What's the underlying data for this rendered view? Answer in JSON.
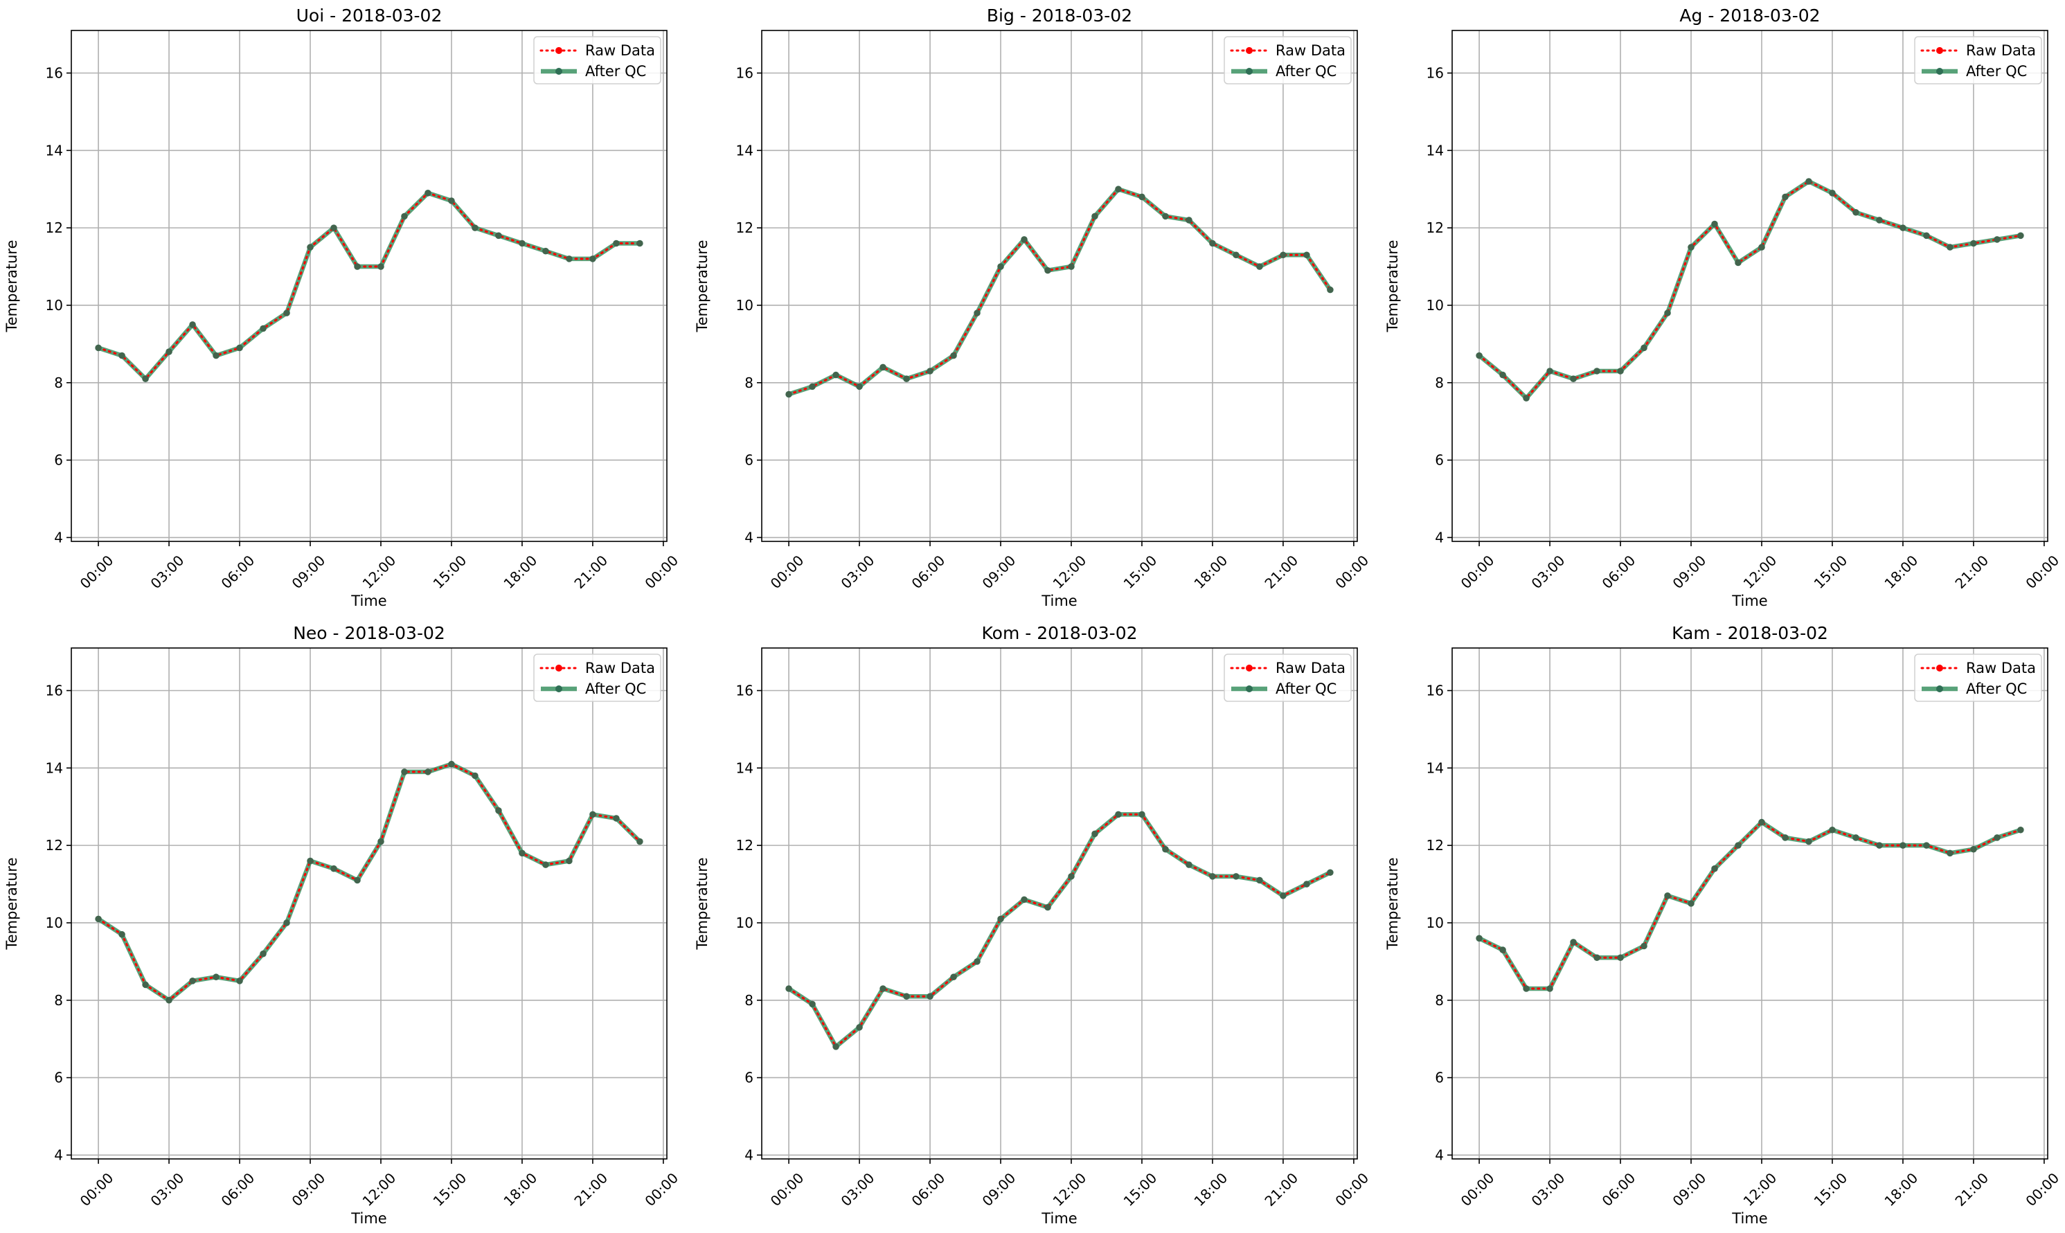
{
  "chart_data": [
    {
      "type": "line",
      "title": "Uoi - 2018-03-02",
      "xlabel": "Time",
      "ylabel": "Temperature",
      "ylim": [
        3.9,
        17.1
      ],
      "yticks": [
        4,
        6,
        8,
        10,
        12,
        14,
        16
      ],
      "xticks": [
        "00:00",
        "03:00",
        "06:00",
        "09:00",
        "12:00",
        "15:00",
        "18:00",
        "21:00",
        "00:00"
      ],
      "grid": true,
      "legend": "upper right",
      "x": [
        "00:00",
        "01:00",
        "02:00",
        "03:00",
        "04:00",
        "05:00",
        "06:00",
        "07:00",
        "08:00",
        "09:00",
        "10:00",
        "11:00",
        "12:00",
        "13:00",
        "14:00",
        "15:00",
        "16:00",
        "17:00",
        "18:00",
        "19:00",
        "20:00",
        "21:00",
        "22:00",
        "23:00"
      ],
      "series": [
        {
          "name": "Raw Data",
          "color": "#ff0000",
          "values": [
            8.9,
            8.7,
            8.1,
            8.8,
            9.5,
            8.7,
            8.9,
            9.4,
            9.8,
            11.5,
            12.0,
            11.0,
            11.0,
            12.3,
            12.9,
            12.7,
            12.0,
            11.8,
            11.6,
            11.4,
            11.2,
            11.2,
            11.6,
            11.6
          ]
        },
        {
          "name": "After QC",
          "color": "#2e8b57",
          "values": [
            8.9,
            8.7,
            8.1,
            8.8,
            9.5,
            8.7,
            8.9,
            9.4,
            9.8,
            11.5,
            12.0,
            11.0,
            11.0,
            12.3,
            12.9,
            12.7,
            12.0,
            11.8,
            11.6,
            11.4,
            11.2,
            11.2,
            11.6,
            11.6
          ]
        }
      ]
    },
    {
      "type": "line",
      "title": "Big - 2018-03-02",
      "xlabel": "Time",
      "ylabel": "Temperature",
      "ylim": [
        3.9,
        17.1
      ],
      "yticks": [
        4,
        6,
        8,
        10,
        12,
        14,
        16
      ],
      "xticks": [
        "00:00",
        "03:00",
        "06:00",
        "09:00",
        "12:00",
        "15:00",
        "18:00",
        "21:00",
        "00:00"
      ],
      "grid": true,
      "legend": "upper right",
      "x": [
        "00:00",
        "01:00",
        "02:00",
        "03:00",
        "04:00",
        "05:00",
        "06:00",
        "07:00",
        "08:00",
        "09:00",
        "10:00",
        "11:00",
        "12:00",
        "13:00",
        "14:00",
        "15:00",
        "16:00",
        "17:00",
        "18:00",
        "19:00",
        "20:00",
        "21:00",
        "22:00",
        "23:00"
      ],
      "series": [
        {
          "name": "Raw Data",
          "color": "#ff0000",
          "values": [
            7.7,
            7.9,
            8.2,
            7.9,
            8.4,
            8.1,
            8.3,
            8.7,
            9.8,
            11.0,
            11.7,
            10.9,
            11.0,
            12.3,
            13.0,
            12.8,
            12.3,
            12.2,
            11.6,
            11.3,
            11.0,
            11.3,
            11.3,
            10.4
          ]
        },
        {
          "name": "After QC",
          "color": "#2e8b57",
          "values": [
            7.7,
            7.9,
            8.2,
            7.9,
            8.4,
            8.1,
            8.3,
            8.7,
            9.8,
            11.0,
            11.7,
            10.9,
            11.0,
            12.3,
            13.0,
            12.8,
            12.3,
            12.2,
            11.6,
            11.3,
            11.0,
            11.3,
            11.3,
            10.4
          ]
        }
      ]
    },
    {
      "type": "line",
      "title": "Ag - 2018-03-02",
      "xlabel": "Time",
      "ylabel": "Temperature",
      "ylim": [
        3.9,
        17.1
      ],
      "yticks": [
        4,
        6,
        8,
        10,
        12,
        14,
        16
      ],
      "xticks": [
        "00:00",
        "03:00",
        "06:00",
        "09:00",
        "12:00",
        "15:00",
        "18:00",
        "21:00",
        "00:00"
      ],
      "grid": true,
      "legend": "upper right",
      "x": [
        "00:00",
        "01:00",
        "02:00",
        "03:00",
        "04:00",
        "05:00",
        "06:00",
        "07:00",
        "08:00",
        "09:00",
        "10:00",
        "11:00",
        "12:00",
        "13:00",
        "14:00",
        "15:00",
        "16:00",
        "17:00",
        "18:00",
        "19:00",
        "20:00",
        "21:00",
        "22:00",
        "23:00"
      ],
      "series": [
        {
          "name": "Raw Data",
          "color": "#ff0000",
          "values": [
            8.7,
            8.2,
            7.6,
            8.3,
            8.1,
            8.3,
            8.3,
            8.9,
            9.8,
            11.5,
            12.1,
            11.1,
            11.5,
            12.8,
            13.2,
            12.9,
            12.4,
            12.2,
            12.0,
            11.8,
            11.5,
            11.6,
            11.7,
            11.8
          ]
        },
        {
          "name": "After QC",
          "color": "#2e8b57",
          "values": [
            8.7,
            8.2,
            7.6,
            8.3,
            8.1,
            8.3,
            8.3,
            8.9,
            9.8,
            11.5,
            12.1,
            11.1,
            11.5,
            12.8,
            13.2,
            12.9,
            12.4,
            12.2,
            12.0,
            11.8,
            11.5,
            11.6,
            11.7,
            11.8
          ]
        }
      ]
    },
    {
      "type": "line",
      "title": "Neo - 2018-03-02",
      "xlabel": "Time",
      "ylabel": "Temperature",
      "ylim": [
        3.9,
        17.1
      ],
      "yticks": [
        4,
        6,
        8,
        10,
        12,
        14,
        16
      ],
      "xticks": [
        "00:00",
        "03:00",
        "06:00",
        "09:00",
        "12:00",
        "15:00",
        "18:00",
        "21:00",
        "00:00"
      ],
      "grid": true,
      "legend": "upper right",
      "x": [
        "00:00",
        "01:00",
        "02:00",
        "03:00",
        "04:00",
        "05:00",
        "06:00",
        "07:00",
        "08:00",
        "09:00",
        "10:00",
        "11:00",
        "12:00",
        "13:00",
        "14:00",
        "15:00",
        "16:00",
        "17:00",
        "18:00",
        "19:00",
        "20:00",
        "21:00",
        "22:00",
        "23:00"
      ],
      "series": [
        {
          "name": "Raw Data",
          "color": "#ff0000",
          "values": [
            10.1,
            9.7,
            8.4,
            8.0,
            8.5,
            8.6,
            8.5,
            9.2,
            10.0,
            11.6,
            11.4,
            11.1,
            12.1,
            13.9,
            13.9,
            14.1,
            13.8,
            12.9,
            11.8,
            11.5,
            11.6,
            12.8,
            12.7,
            12.1
          ]
        },
        {
          "name": "After QC",
          "color": "#2e8b57",
          "values": [
            10.1,
            9.7,
            8.4,
            8.0,
            8.5,
            8.6,
            8.5,
            9.2,
            10.0,
            11.6,
            11.4,
            11.1,
            12.1,
            13.9,
            13.9,
            14.1,
            13.8,
            12.9,
            11.8,
            11.5,
            11.6,
            12.8,
            12.7,
            12.1
          ]
        }
      ]
    },
    {
      "type": "line",
      "title": "Kom - 2018-03-02",
      "xlabel": "Time",
      "ylabel": "Temperature",
      "ylim": [
        3.9,
        17.1
      ],
      "yticks": [
        4,
        6,
        8,
        10,
        12,
        14,
        16
      ],
      "xticks": [
        "00:00",
        "03:00",
        "06:00",
        "09:00",
        "12:00",
        "15:00",
        "18:00",
        "21:00",
        "00:00"
      ],
      "grid": true,
      "legend": "upper right",
      "x": [
        "00:00",
        "01:00",
        "02:00",
        "03:00",
        "04:00",
        "05:00",
        "06:00",
        "07:00",
        "08:00",
        "09:00",
        "10:00",
        "11:00",
        "12:00",
        "13:00",
        "14:00",
        "15:00",
        "16:00",
        "17:00",
        "18:00",
        "19:00",
        "20:00",
        "21:00",
        "22:00",
        "23:00"
      ],
      "series": [
        {
          "name": "Raw Data",
          "color": "#ff0000",
          "values": [
            8.3,
            7.9,
            6.8,
            7.3,
            8.3,
            8.1,
            8.1,
            8.6,
            9.0,
            10.1,
            10.6,
            10.4,
            11.2,
            12.3,
            12.8,
            12.8,
            11.9,
            11.5,
            11.2,
            11.2,
            11.1,
            10.7,
            11.0,
            11.3
          ]
        },
        {
          "name": "After QC",
          "color": "#2e8b57",
          "values": [
            8.3,
            7.9,
            6.8,
            7.3,
            8.3,
            8.1,
            8.1,
            8.6,
            9.0,
            10.1,
            10.6,
            10.4,
            11.2,
            12.3,
            12.8,
            12.8,
            11.9,
            11.5,
            11.2,
            11.2,
            11.1,
            10.7,
            11.0,
            11.3
          ]
        }
      ]
    },
    {
      "type": "line",
      "title": "Kam - 2018-03-02",
      "xlabel": "Time",
      "ylabel": "Temperature",
      "ylim": [
        3.9,
        17.1
      ],
      "yticks": [
        4,
        6,
        8,
        10,
        12,
        14,
        16
      ],
      "xticks": [
        "00:00",
        "03:00",
        "06:00",
        "09:00",
        "12:00",
        "15:00",
        "18:00",
        "21:00",
        "00:00"
      ],
      "grid": true,
      "legend": "upper right",
      "x": [
        "00:00",
        "01:00",
        "02:00",
        "03:00",
        "04:00",
        "05:00",
        "06:00",
        "07:00",
        "08:00",
        "09:00",
        "10:00",
        "11:00",
        "12:00",
        "13:00",
        "14:00",
        "15:00",
        "16:00",
        "17:00",
        "18:00",
        "19:00",
        "20:00",
        "21:00",
        "22:00",
        "23:00"
      ],
      "series": [
        {
          "name": "Raw Data",
          "color": "#ff0000",
          "values": [
            9.6,
            9.3,
            8.3,
            8.3,
            9.5,
            9.1,
            9.1,
            9.4,
            10.7,
            10.5,
            11.4,
            12.0,
            12.6,
            12.2,
            12.1,
            12.4,
            12.2,
            12.0,
            12.0,
            12.0,
            11.8,
            11.9,
            12.2,
            12.4
          ]
        },
        {
          "name": "After QC",
          "color": "#2e8b57",
          "values": [
            9.6,
            9.3,
            8.3,
            8.3,
            9.5,
            9.1,
            9.1,
            9.4,
            10.7,
            10.5,
            11.4,
            12.0,
            12.6,
            12.2,
            12.1,
            12.4,
            12.2,
            12.0,
            12.0,
            12.0,
            11.8,
            11.9,
            12.2,
            12.4
          ]
        }
      ]
    }
  ]
}
